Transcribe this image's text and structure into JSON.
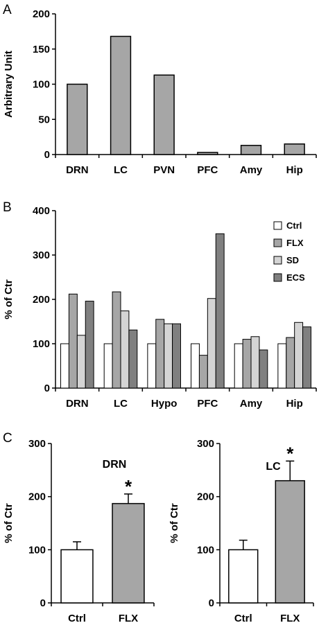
{
  "panels": {
    "a": "A",
    "b": "B",
    "c": "C"
  },
  "chart_data": [
    {
      "id": "A",
      "type": "bar",
      "categories": [
        "DRN",
        "LC",
        "PVN",
        "PFC",
        "Amy",
        "Hip"
      ],
      "values": [
        100,
        168,
        113,
        3,
        13,
        15
      ],
      "ylabel": "Arbitrary Unit",
      "ylim": [
        0,
        200
      ],
      "yticks": [
        0,
        50,
        100,
        150,
        200
      ],
      "bar_color": "#a6a6a6",
      "grid": false
    },
    {
      "id": "B",
      "type": "bar",
      "categories": [
        "DRN",
        "LC",
        "Hypo",
        "PFC",
        "Amy",
        "Hip"
      ],
      "series": [
        {
          "name": "Ctrl",
          "color": "#ffffff",
          "values": [
            100,
            100,
            100,
            100,
            100,
            100
          ]
        },
        {
          "name": "FLX",
          "color": "#a6a6a6",
          "values": [
            212,
            217,
            155,
            74,
            110,
            114
          ]
        },
        {
          "name": "SD",
          "color": "#d4d4d4",
          "values": [
            119,
            174,
            145,
            202,
            116,
            148
          ]
        },
        {
          "name": "ECS",
          "color": "#808080",
          "values": [
            196,
            131,
            145,
            348,
            86,
            138
          ]
        }
      ],
      "ylabel": "% of Ctr",
      "ylim": [
        0,
        400
      ],
      "yticks": [
        0,
        100,
        200,
        300,
        400
      ],
      "legend": "top-right",
      "grid": false
    },
    {
      "id": "C-left",
      "type": "bar",
      "title": "DRN",
      "categories": [
        "Ctrl",
        "FLX"
      ],
      "values": [
        100,
        187
      ],
      "errors": [
        15,
        18
      ],
      "colors": [
        "#ffffff",
        "#a6a6a6"
      ],
      "ylabel": "% of Ctr",
      "ylim": [
        0,
        300
      ],
      "yticks": [
        0,
        100,
        200,
        300
      ],
      "annotations": [
        {
          "category": "FLX",
          "text": "*"
        }
      ]
    },
    {
      "id": "C-right",
      "type": "bar",
      "title": "LC",
      "categories": [
        "Ctrl",
        "FLX"
      ],
      "values": [
        100,
        230
      ],
      "errors": [
        18,
        37
      ],
      "colors": [
        "#ffffff",
        "#a6a6a6"
      ],
      "ylabel": "% of Ctr",
      "ylim": [
        0,
        300
      ],
      "yticks": [
        0,
        100,
        200,
        300
      ],
      "annotations": [
        {
          "category": "FLX",
          "text": "*"
        }
      ]
    }
  ]
}
